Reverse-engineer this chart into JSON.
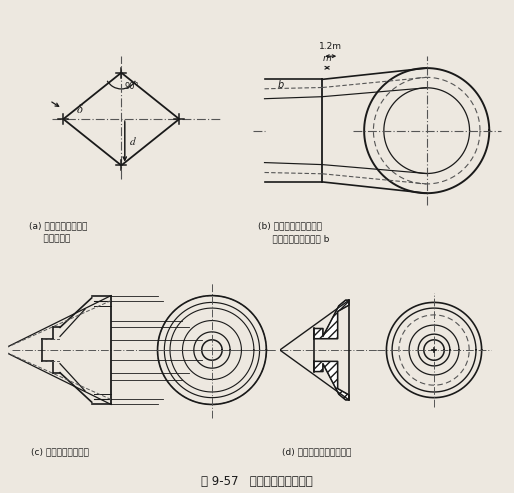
{
  "title": "图 9-57   圆锥齿轮的画图步骤",
  "bg_color": "#ede8e0",
  "line_color": "#1a1a1a",
  "dash_color": "#555555",
  "caption_a": "(a) 定出分度圆直径、\n     分度圆锥角",
  "caption_b": "(b) 画出齿顶线（圆）、\n     齿根线，并定出齿宽 b",
  "caption_c": "(c) 画出其他投影轮廓",
  "caption_d": "(d) 画剖面线，修饰并加深",
  "label_90": "90°",
  "label_delta": "δ",
  "label_d": "d",
  "label_m": "m",
  "label_12m": "1.2m",
  "label_b": "b"
}
